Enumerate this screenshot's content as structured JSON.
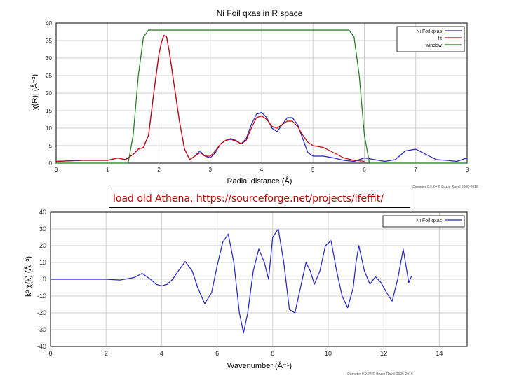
{
  "slide": {
    "caption": "load old Athena, https://sourceforge.net/projects/ifeffit/"
  },
  "chart_data": [
    {
      "type": "line",
      "title": "Ni Foil qxas in R space",
      "xlabel": "Radial distance (Å)",
      "ylabel": "|χ(R)| (Å⁻³)",
      "xlim": [
        0,
        8
      ],
      "ylim": [
        0,
        40
      ],
      "xticks": [
        0,
        1,
        2,
        3,
        4,
        5,
        6,
        7,
        8
      ],
      "yticks": [
        0,
        5,
        10,
        15,
        20,
        25,
        30,
        35,
        40
      ],
      "grid": true,
      "legend_position": "top-right",
      "footer": "Demeter 0.9.24 © Bruce Ravel 2006-2016",
      "series": [
        {
          "name": "Ni Foil qxas",
          "color": "#2020c0",
          "x": [
            0.0,
            0.5,
            1.0,
            1.2,
            1.35,
            1.5,
            1.6,
            1.7,
            1.8,
            1.9,
            2.0,
            2.05,
            2.1,
            2.15,
            2.2,
            2.3,
            2.4,
            2.5,
            2.6,
            2.7,
            2.8,
            2.9,
            3.0,
            3.1,
            3.2,
            3.3,
            3.4,
            3.5,
            3.6,
            3.7,
            3.8,
            3.9,
            4.0,
            4.1,
            4.2,
            4.3,
            4.4,
            4.5,
            4.6,
            4.7,
            4.8,
            4.9,
            5.0,
            5.2,
            5.4,
            5.6,
            5.8,
            6.0,
            6.2,
            6.4,
            6.6,
            6.8,
            7.0,
            7.2,
            7.4,
            7.6,
            7.8,
            8.0
          ],
          "y": [
            0.5,
            0.8,
            0.8,
            1.5,
            1.0,
            2.5,
            4.0,
            4.5,
            8.0,
            20.0,
            31.0,
            34.5,
            36.5,
            36.0,
            32.0,
            22.0,
            12.0,
            4.0,
            1.0,
            2.0,
            3.5,
            2.0,
            1.5,
            3.0,
            5.5,
            6.5,
            7.0,
            6.5,
            5.5,
            7.0,
            11.0,
            14.0,
            14.5,
            13.0,
            10.0,
            9.0,
            11.0,
            13.0,
            13.0,
            11.0,
            7.0,
            3.0,
            2.0,
            2.0,
            1.5,
            0.8,
            0.5,
            1.5,
            1.0,
            0.5,
            1.0,
            3.5,
            4.0,
            2.5,
            1.0,
            0.8,
            0.5,
            1.5
          ]
        },
        {
          "name": "fit",
          "color": "#cc0000",
          "x": [
            0.0,
            0.5,
            1.0,
            1.2,
            1.35,
            1.5,
            1.6,
            1.7,
            1.8,
            1.9,
            2.0,
            2.05,
            2.1,
            2.15,
            2.2,
            2.3,
            2.4,
            2.5,
            2.6,
            2.7,
            2.8,
            2.9,
            3.0,
            3.1,
            3.2,
            3.3,
            3.4,
            3.5,
            3.6,
            3.7,
            3.8,
            3.9,
            4.0,
            4.1,
            4.2,
            4.3,
            4.4,
            4.5,
            4.6,
            4.7,
            4.8,
            4.9,
            5.0,
            5.2,
            5.4,
            5.6,
            5.8,
            6.0
          ],
          "y": [
            0.5,
            0.8,
            0.8,
            1.5,
            1.0,
            2.5,
            4.0,
            4.5,
            8.0,
            20.0,
            31.0,
            34.5,
            36.5,
            36.0,
            32.0,
            22.0,
            12.0,
            4.0,
            1.0,
            2.0,
            3.0,
            2.0,
            2.0,
            3.5,
            5.5,
            6.5,
            6.8,
            6.3,
            5.5,
            6.5,
            10.0,
            13.0,
            13.5,
            12.5,
            10.5,
            10.0,
            11.0,
            12.0,
            12.0,
            10.5,
            8.0,
            6.0,
            5.0,
            4.5,
            3.0,
            1.5,
            0.8,
            0.5
          ]
        },
        {
          "name": "window",
          "color": "#1a7a1a",
          "x": [
            0.0,
            1.4,
            1.5,
            1.6,
            1.7,
            1.8,
            1.9,
            5.7,
            5.8,
            5.9,
            6.0,
            6.1,
            6.2,
            8.0
          ],
          "y": [
            0.0,
            0.0,
            8.0,
            25.0,
            36.0,
            38.0,
            38.0,
            38.0,
            36.0,
            25.0,
            8.0,
            0.0,
            0.0,
            0.0
          ]
        }
      ]
    },
    {
      "type": "line",
      "title": "",
      "xlabel": "Wavenumber (Å⁻¹)",
      "ylabel": "k³ χ(k) (Å⁻³)",
      "xlim": [
        0,
        15
      ],
      "ylim": [
        -40,
        40
      ],
      "xticks": [
        0,
        2,
        4,
        6,
        8,
        10,
        12,
        14
      ],
      "yticks": [
        -40,
        -30,
        -20,
        -10,
        0,
        10,
        20,
        30,
        40
      ],
      "grid": true,
      "legend_position": "top-right",
      "footer": "Demeter 0.9.24 © Bruce Ravel 2006-2016",
      "series": [
        {
          "name": "Ni Foil qxas",
          "color": "#2020c0",
          "x": [
            0.0,
            1.0,
            2.0,
            2.5,
            3.0,
            3.3,
            3.6,
            3.8,
            4.0,
            4.2,
            4.4,
            4.6,
            4.85,
            5.1,
            5.3,
            5.55,
            5.8,
            6.0,
            6.2,
            6.4,
            6.6,
            6.8,
            6.95,
            7.1,
            7.3,
            7.5,
            7.7,
            7.85,
            8.0,
            8.2,
            8.4,
            8.6,
            8.8,
            9.0,
            9.2,
            9.35,
            9.5,
            9.7,
            9.9,
            10.1,
            10.3,
            10.5,
            10.7,
            10.9,
            11.0,
            11.1,
            11.3,
            11.5,
            11.7,
            11.9,
            12.1,
            12.3,
            12.5,
            12.7,
            12.9,
            13.0
          ],
          "y": [
            0.0,
            0.0,
            0.0,
            -0.5,
            1.0,
            3.5,
            0.0,
            -3.0,
            -4.0,
            -3.0,
            0.0,
            5.0,
            10.5,
            5.0,
            -5.0,
            -14.5,
            -8.0,
            8.0,
            22.0,
            27.0,
            10.0,
            -20.0,
            -32.0,
            -20.0,
            5.0,
            18.0,
            10.0,
            0.0,
            25.0,
            30.0,
            10.0,
            -18.0,
            -20.0,
            -5.0,
            10.0,
            5.0,
            -3.0,
            5.0,
            20.0,
            23.0,
            5.0,
            -10.0,
            -17.0,
            -5.0,
            10.0,
            20.0,
            5.0,
            -3.0,
            1.5,
            -2.0,
            -8.0,
            -13.0,
            0.0,
            18.0,
            -2.0,
            2.0
          ]
        }
      ]
    }
  ]
}
